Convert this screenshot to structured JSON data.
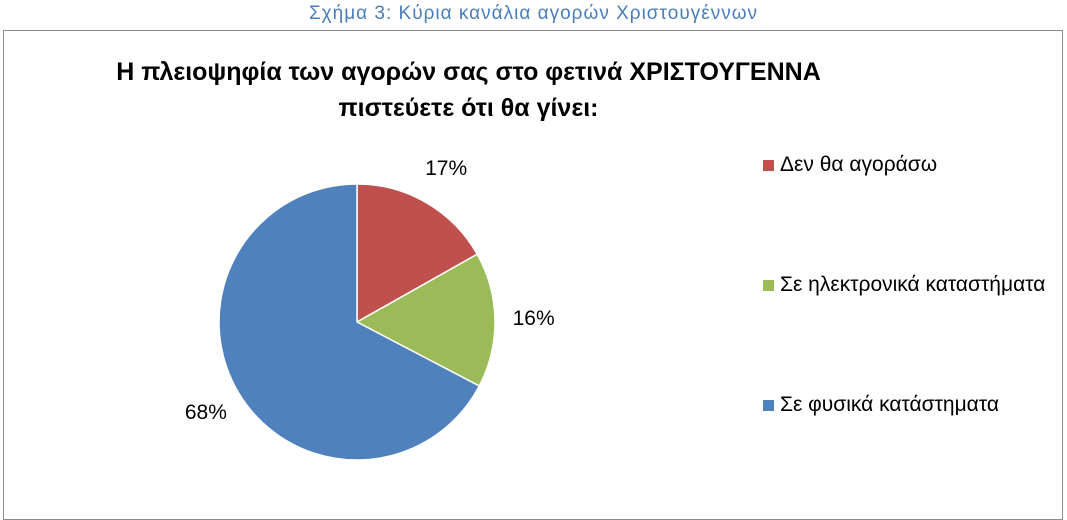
{
  "caption": "Σχήμα 3: Κύρια κανάλια αγορών Χριστουγέννων",
  "chart_data": {
    "type": "pie",
    "title": "Η πλειοψηφία των αγορών σας στο φετινά ΧΡΙΣΤΟΥΓΕΝΝΑ\nπιστεύετε ότι θα γίνει:",
    "categories": [
      "Δεν θα αγοράσω",
      "Σε ηλεκτρονικά καταστήματα",
      "Σε φυσικά κατάστηματα"
    ],
    "values": [
      17,
      16,
      68
    ],
    "value_labels": [
      "17%",
      "16%",
      "68%"
    ],
    "colors": [
      "#c0504d",
      "#9bbb59",
      "#4f81bd"
    ],
    "legend": "right"
  }
}
